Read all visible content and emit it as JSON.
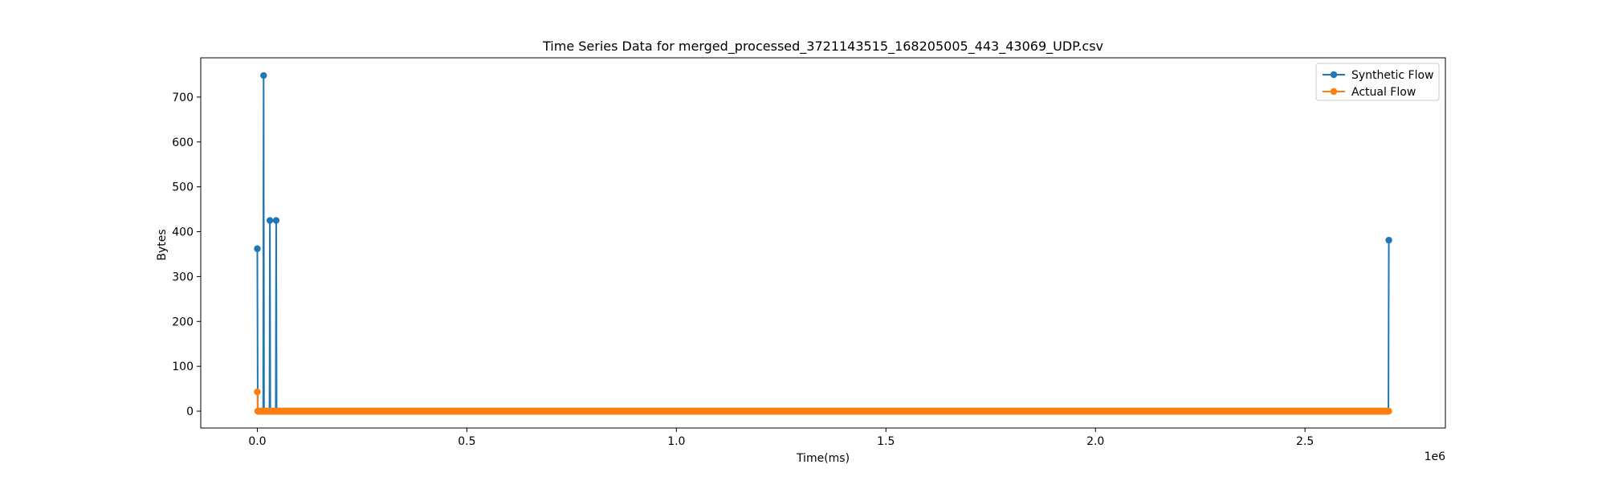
{
  "chart_data": {
    "type": "line",
    "title": "Time Series Data for merged_processed_3721143515_168205005_443_43069_UDP.csv",
    "xlabel": "Time(ms)",
    "ylabel": "Bytes",
    "x_offset_label": "1e6",
    "xlim": [
      -135000,
      2835000
    ],
    "ylim": [
      -37.5,
      787.5
    ],
    "x_ticks": [
      0,
      500000,
      1000000,
      1500000,
      2000000,
      2500000
    ],
    "x_tick_labels": [
      "0.0",
      "0.5",
      "1.0",
      "1.5",
      "2.0",
      "2.5"
    ],
    "y_ticks": [
      0,
      100,
      200,
      300,
      400,
      500,
      600,
      700
    ],
    "y_tick_labels": [
      "0",
      "100",
      "200",
      "300",
      "400",
      "500",
      "600",
      "700"
    ],
    "grid": false,
    "legend_position": "upper right",
    "series": [
      {
        "name": "Synthetic Flow",
        "color": "#1f77b4",
        "marker": "circle",
        "sampling_interval_ms": 1000,
        "x_range": [
          0,
          2700000
        ],
        "default_value": 0,
        "points": [
          {
            "x": 0,
            "y": 362
          },
          {
            "x": 15000,
            "y": 748
          },
          {
            "x": 30000,
            "y": 425
          },
          {
            "x": 45000,
            "y": 425
          },
          {
            "x": 2700000,
            "y": 381
          }
        ]
      },
      {
        "name": "Actual Flow",
        "color": "#ff7f0e",
        "marker": "circle",
        "sampling_interval_ms": 1000,
        "x_range": [
          0,
          2700000
        ],
        "default_value": 0,
        "points": [
          {
            "x": 0,
            "y": 43
          }
        ]
      }
    ]
  }
}
